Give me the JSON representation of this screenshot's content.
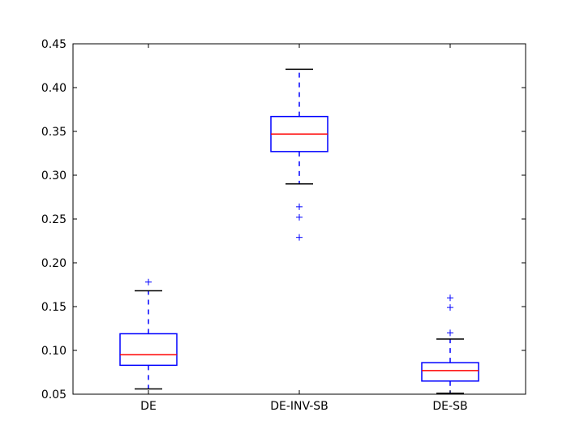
{
  "chart_data": {
    "type": "box",
    "categories": [
      "DE",
      "DE-INV-SB",
      "DE-SB"
    ],
    "ylim": [
      0.05,
      0.45
    ],
    "yticks": [
      "0.05",
      "0.10",
      "0.15",
      "0.20",
      "0.25",
      "0.30",
      "0.35",
      "0.40",
      "0.45"
    ],
    "ytick_values": [
      0.05,
      0.1,
      0.15,
      0.2,
      0.25,
      0.3,
      0.35,
      0.4,
      0.45
    ],
    "grid": false,
    "boxes": [
      {
        "category": "DE",
        "whisker_low": 0.056,
        "q1": 0.083,
        "median": 0.095,
        "q3": 0.119,
        "whisker_high": 0.168,
        "outliers": [
          0.178
        ]
      },
      {
        "category": "DE-INV-SB",
        "whisker_low": 0.29,
        "q1": 0.327,
        "median": 0.347,
        "q3": 0.367,
        "whisker_high": 0.421,
        "outliers": [
          0.264,
          0.252,
          0.229
        ]
      },
      {
        "category": "DE-SB",
        "whisker_low": 0.051,
        "q1": 0.065,
        "median": 0.077,
        "q3": 0.086,
        "whisker_high": 0.113,
        "outliers": [
          0.12,
          0.149,
          0.16
        ]
      }
    ],
    "colors": {
      "box": "#0000ff",
      "median": "#ff0000",
      "whisker_cap": "#000000",
      "outlier": "#0000ff"
    }
  }
}
